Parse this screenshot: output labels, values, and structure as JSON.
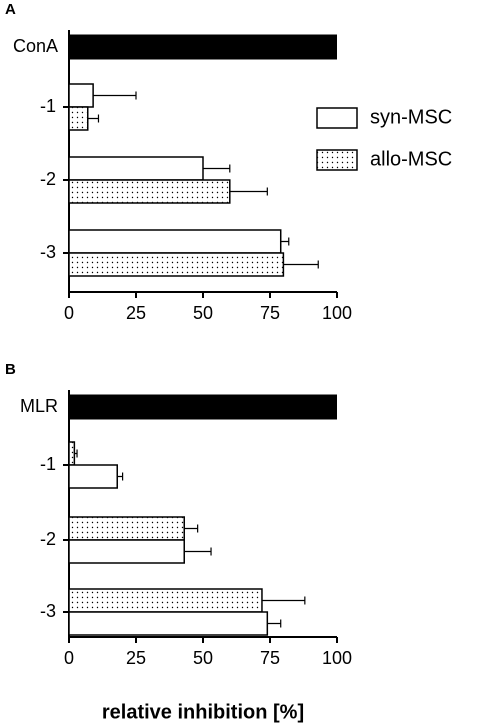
{
  "chart_data": [
    {
      "type": "bar",
      "orientation": "horizontal",
      "panel_label": "A",
      "categories": [
        "ConA",
        "-1",
        "-2",
        "-3"
      ],
      "control_values": [
        100,
        null,
        null,
        null
      ],
      "control_color": "#000000",
      "series": [
        {
          "name": "syn-MSC",
          "color": "#ffffff",
          "pattern": "none",
          "values": [
            null,
            9,
            50,
            79
          ],
          "errors": [
            null,
            16,
            10,
            3
          ]
        },
        {
          "name": "allo-MSC",
          "color": "#ffffff",
          "pattern": "dots",
          "values": [
            null,
            7,
            60,
            80
          ],
          "errors": [
            null,
            4,
            14,
            13
          ]
        }
      ],
      "xlim": [
        0,
        100
      ],
      "xticks": [
        0,
        25,
        50,
        75,
        100
      ],
      "legend": true,
      "legend_position": "right"
    },
    {
      "type": "bar",
      "orientation": "horizontal",
      "panel_label": "B",
      "categories": [
        "MLR",
        "-1",
        "-2",
        "-3"
      ],
      "control_values": [
        100,
        null,
        null,
        null
      ],
      "control_color": "#000000",
      "series": [
        {
          "name": "allo-MSC",
          "color": "#ffffff",
          "pattern": "dots",
          "values": [
            null,
            2,
            43,
            72
          ],
          "errors": [
            null,
            1,
            5,
            16
          ]
        },
        {
          "name": "syn-MSC",
          "color": "#ffffff",
          "pattern": "none",
          "values": [
            null,
            18,
            43,
            74
          ],
          "errors": [
            null,
            2,
            10,
            5
          ]
        }
      ],
      "xlim": [
        0,
        100
      ],
      "xticks": [
        0,
        25,
        50,
        75,
        100
      ],
      "xlabel": "relative inhibition [%]",
      "legend": false
    }
  ]
}
